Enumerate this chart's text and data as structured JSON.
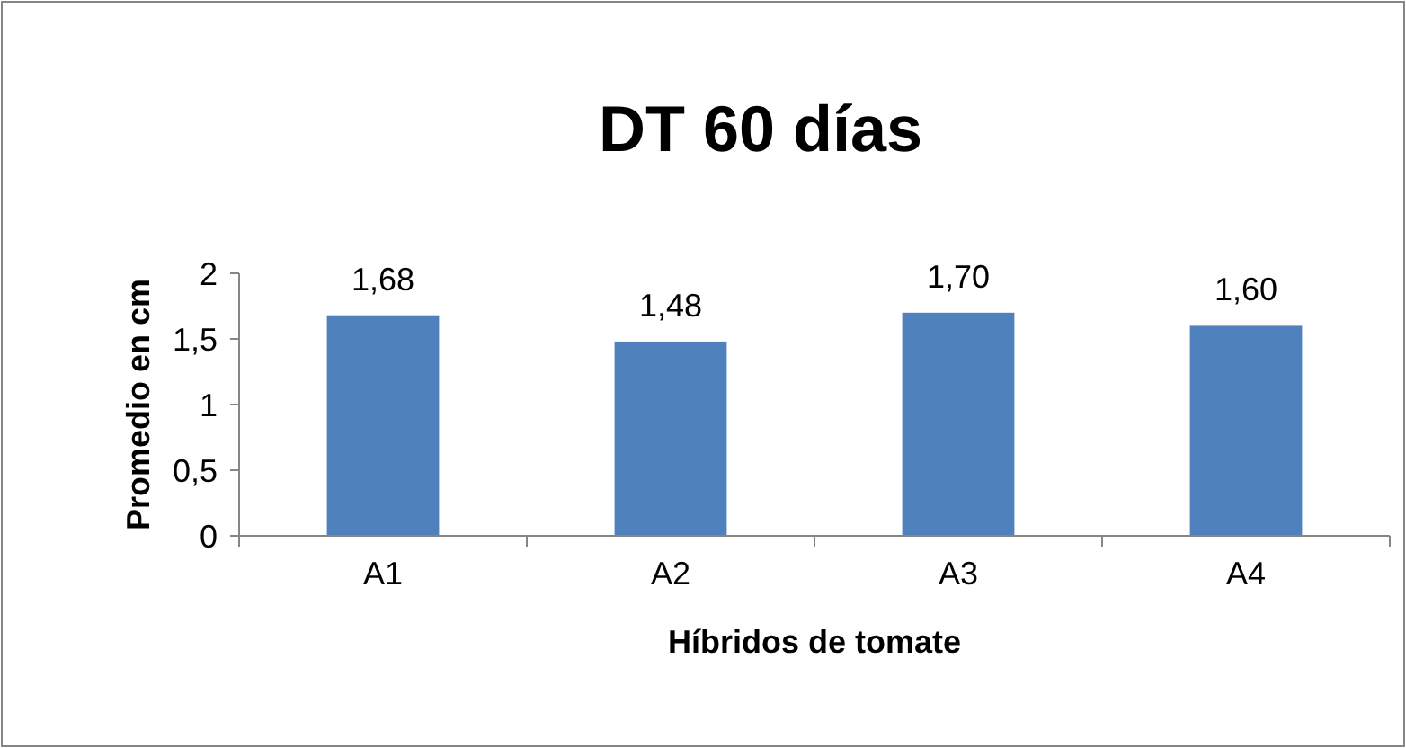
{
  "chart_data": {
    "type": "bar",
    "title": "DT 60 días",
    "xlabel": "Híbridos de tomate",
    "ylabel": "Promedio en cm",
    "categories": [
      "A1",
      "A2",
      "A3",
      "A4"
    ],
    "values": [
      1.68,
      1.48,
      1.7,
      1.6
    ],
    "value_labels": [
      "1,68",
      "1,48",
      "1,70",
      "1,60"
    ],
    "color": "#4f81bd",
    "ylim": [
      0,
      2
    ],
    "yticks": [
      0,
      {
        "value": 0.5,
        "label": "0,5"
      },
      1,
      {
        "value": 1.5,
        "label": "1,5"
      },
      2
    ],
    "grid": false
  }
}
